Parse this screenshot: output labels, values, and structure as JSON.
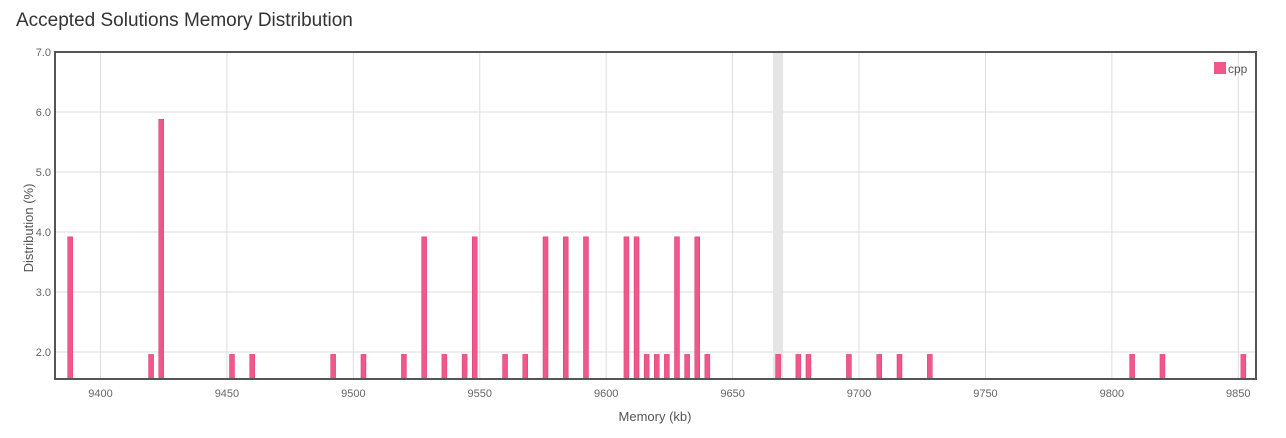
{
  "title": "Accepted Solutions Memory Distribution",
  "colors": {
    "bar": "#f0578a",
    "barStroke": "#d93a70",
    "highlight": "#e5e5e5",
    "grid": "#dddddd",
    "frame": "#555555"
  },
  "chart_data": {
    "type": "bar",
    "title": "Accepted Solutions Memory Distribution",
    "xlabel": "Memory (kb)",
    "ylabel": "Distribution (%)",
    "xlim": [
      9382,
      9857
    ],
    "ylim": [
      1.55,
      7.0
    ],
    "x_ticks": [
      9400,
      9450,
      9500,
      9550,
      9600,
      9650,
      9700,
      9750,
      9800,
      9850
    ],
    "y_ticks": [
      2.0,
      3.0,
      4.0,
      5.0,
      6.0,
      7.0
    ],
    "x_tick_labels": [
      "9400",
      "9450",
      "9500",
      "9550",
      "9600",
      "9650",
      "9700",
      "9750",
      "9800",
      "9850"
    ],
    "y_tick_labels": [
      "2.0",
      "3.0",
      "4.0",
      "5.0",
      "6.0",
      "7.0"
    ],
    "grid": true,
    "legend_position": "top-right",
    "highlight_x": 9668,
    "series": [
      {
        "name": "cpp",
        "x": [
          9388,
          9420,
          9424,
          9452,
          9460,
          9492,
          9504,
          9520,
          9528,
          9536,
          9544,
          9548,
          9560,
          9568,
          9576,
          9584,
          9592,
          9608,
          9612,
          9616,
          9620,
          9624,
          9628,
          9632,
          9636,
          9640,
          9668,
          9676,
          9680,
          9696,
          9708,
          9716,
          9728,
          9808,
          9820,
          9852
        ],
        "values": [
          3.92,
          1.96,
          5.88,
          1.96,
          1.96,
          1.96,
          1.96,
          1.96,
          3.92,
          1.96,
          1.96,
          3.92,
          1.96,
          1.96,
          3.92,
          3.92,
          3.92,
          3.92,
          3.92,
          1.96,
          1.96,
          1.96,
          3.92,
          1.96,
          3.92,
          1.96,
          1.96,
          1.96,
          1.96,
          1.96,
          1.96,
          1.96,
          1.96,
          1.96,
          1.96,
          1.96
        ]
      }
    ]
  }
}
